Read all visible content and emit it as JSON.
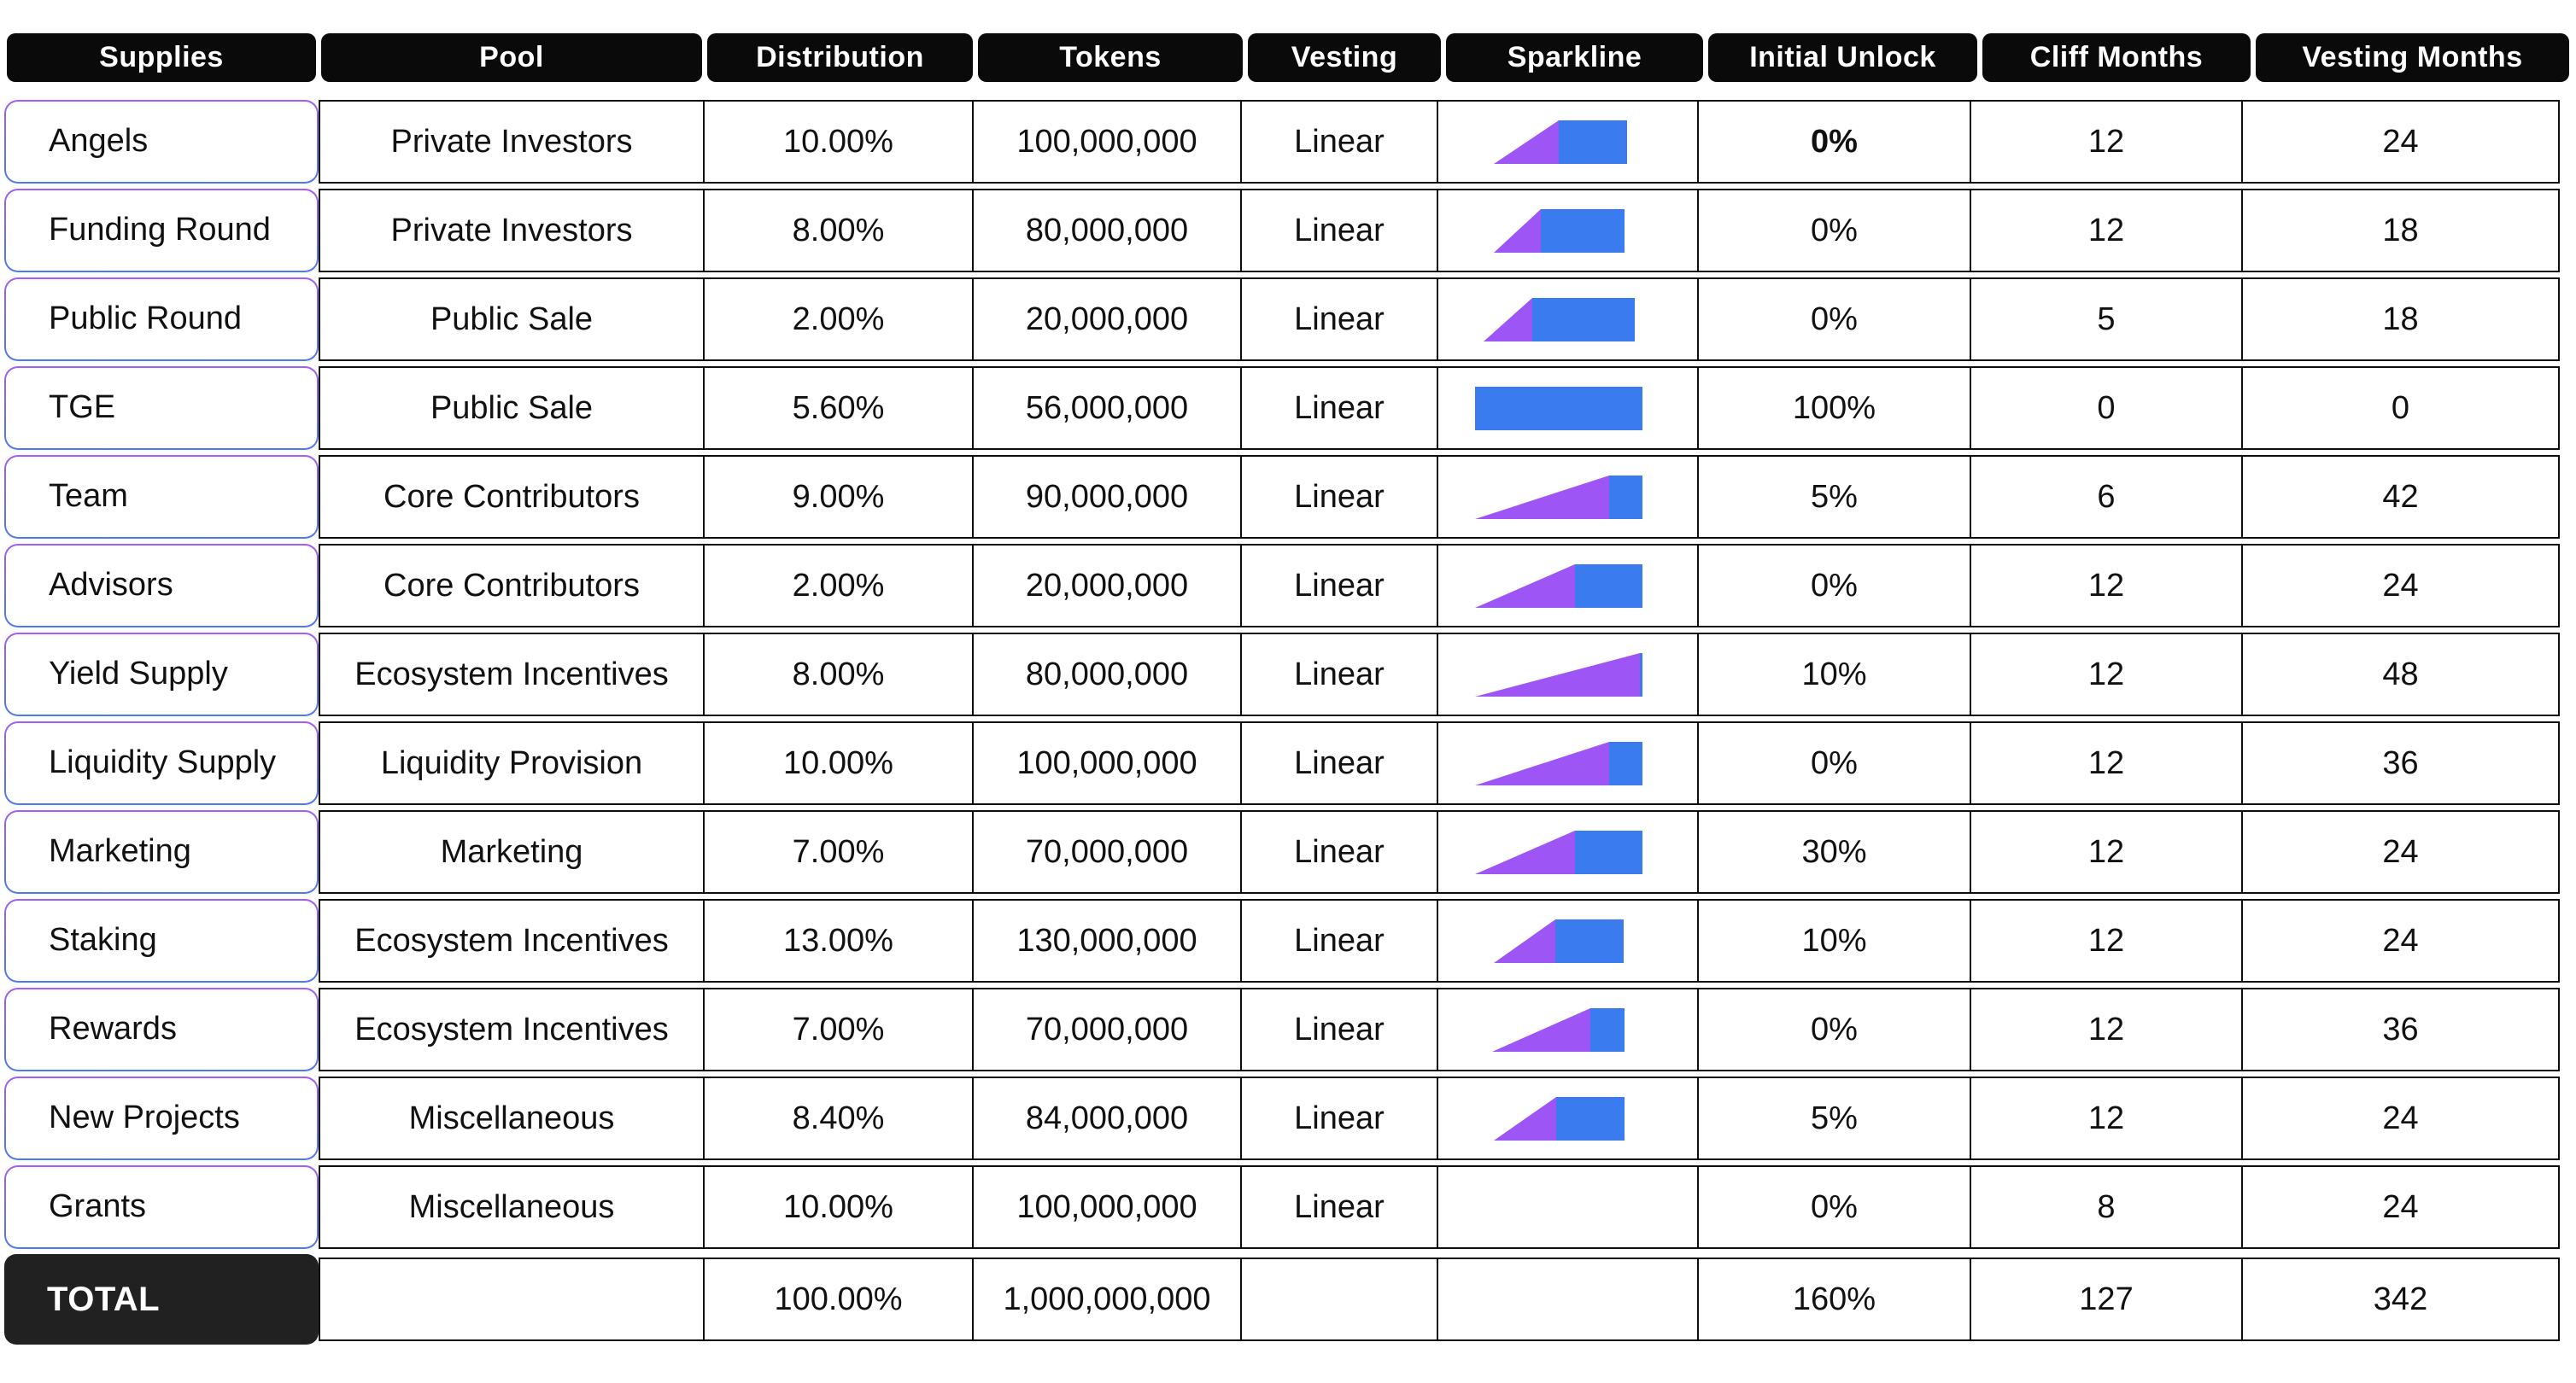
{
  "table": {
    "columns": [
      {
        "key": "supplies",
        "label": "Supplies"
      },
      {
        "key": "pool",
        "label": "Pool"
      },
      {
        "key": "distribution",
        "label": "Distribution"
      },
      {
        "key": "tokens",
        "label": "Tokens"
      },
      {
        "key": "vesting",
        "label": "Vesting"
      },
      {
        "key": "sparkline",
        "label": "Sparkline"
      },
      {
        "key": "initial_unlock",
        "label": "Initial Unlock"
      },
      {
        "key": "cliff_months",
        "label": "Cliff Months"
      },
      {
        "key": "vesting_months",
        "label": "Vesting Months"
      }
    ],
    "rows": [
      {
        "supplies": "Angels",
        "pool": "Private Investors",
        "distribution": "10.00%",
        "tokens": "100,000,000",
        "vesting": "Linear",
        "sparkline": {
          "offset": 22,
          "ramp": 76,
          "full": 80
        },
        "initial_unlock": "0%",
        "initial_unlock_bold": true,
        "cliff_months": "12",
        "vesting_months": "24"
      },
      {
        "supplies": "Funding Round",
        "pool": "Private Investors",
        "distribution": "8.00%",
        "tokens": "80,000,000",
        "vesting": "Linear",
        "sparkline": {
          "offset": 22,
          "ramp": 55,
          "full": 98
        },
        "initial_unlock": "0%",
        "cliff_months": "12",
        "vesting_months": "18"
      },
      {
        "supplies": "Public Round",
        "pool": "Public Sale",
        "distribution": "2.00%",
        "tokens": "20,000,000",
        "vesting": "Linear",
        "sparkline": {
          "offset": 10,
          "ramp": 57,
          "full": 120
        },
        "initial_unlock": "0%",
        "cliff_months": "5",
        "vesting_months": "18"
      },
      {
        "supplies": "TGE",
        "pool": "Public Sale",
        "distribution": "5.60%",
        "tokens": "56,000,000",
        "vesting": "Linear",
        "sparkline": {
          "offset": 0,
          "ramp": 0,
          "full": 196
        },
        "initial_unlock": "100%",
        "cliff_months": "0",
        "vesting_months": "0"
      },
      {
        "supplies": "Team",
        "pool": "Core Contributors",
        "distribution": "9.00%",
        "tokens": "90,000,000",
        "vesting": "Linear",
        "sparkline": {
          "offset": 0,
          "ramp": 157,
          "full": 40
        },
        "initial_unlock": "5%",
        "cliff_months": "6",
        "vesting_months": "42"
      },
      {
        "supplies": "Advisors",
        "pool": "Core Contributors",
        "distribution": "2.00%",
        "tokens": "20,000,000",
        "vesting": "Linear",
        "sparkline": {
          "offset": 0,
          "ramp": 117,
          "full": 80
        },
        "initial_unlock": "0%",
        "cliff_months": "12",
        "vesting_months": "24"
      },
      {
        "supplies": "Yield Supply",
        "pool": "Ecosystem Incentives",
        "distribution": "8.00%",
        "tokens": "80,000,000",
        "vesting": "Linear",
        "sparkline": {
          "offset": 0,
          "ramp": 193,
          "full": 4
        },
        "initial_unlock": "10%",
        "cliff_months": "12",
        "vesting_months": "48"
      },
      {
        "supplies": "Liquidity Supply",
        "pool": "Liquidity Provision",
        "distribution": "10.00%",
        "tokens": "100,000,000",
        "vesting": "Linear",
        "sparkline": {
          "offset": 0,
          "ramp": 157,
          "full": 40
        },
        "initial_unlock": "0%",
        "cliff_months": "12",
        "vesting_months": "36"
      },
      {
        "supplies": "Marketing",
        "pool": "Marketing",
        "distribution": "7.00%",
        "tokens": "70,000,000",
        "vesting": "Linear",
        "sparkline": {
          "offset": 0,
          "ramp": 117,
          "full": 80
        },
        "initial_unlock": "30%",
        "cliff_months": "12",
        "vesting_months": "24"
      },
      {
        "supplies": "Staking",
        "pool": "Ecosystem Incentives",
        "distribution": "13.00%",
        "tokens": "130,000,000",
        "vesting": "Linear",
        "sparkline": {
          "offset": 22,
          "ramp": 72,
          "full": 80
        },
        "initial_unlock": "10%",
        "cliff_months": "12",
        "vesting_months": "24"
      },
      {
        "supplies": "Rewards",
        "pool": "Ecosystem Incentives",
        "distribution": "7.00%",
        "tokens": "70,000,000",
        "vesting": "Linear",
        "sparkline": {
          "offset": 20,
          "ramp": 115,
          "full": 40
        },
        "initial_unlock": "0%",
        "cliff_months": "12",
        "vesting_months": "36"
      },
      {
        "supplies": "New Projects",
        "pool": "Miscellaneous",
        "distribution": "8.40%",
        "tokens": "84,000,000",
        "vesting": "Linear",
        "sparkline": {
          "offset": 22,
          "ramp": 73,
          "full": 80
        },
        "initial_unlock": "5%",
        "cliff_months": "12",
        "vesting_months": "24"
      },
      {
        "supplies": "Grants",
        "pool": "Miscellaneous",
        "distribution": "10.00%",
        "tokens": "100,000,000",
        "vesting": "Linear",
        "sparkline": null,
        "initial_unlock": "0%",
        "cliff_months": "8",
        "vesting_months": "24"
      }
    ],
    "total": {
      "label": "TOTAL",
      "pool": "",
      "distribution": "100.00%",
      "tokens": "1,000,000,000",
      "vesting": "",
      "initial_unlock": "160%",
      "cliff_months": "127",
      "vesting_months": "342"
    }
  },
  "colors": {
    "header_bg": "#0a0a0a",
    "header_text": "#ffffff",
    "cell_border": "#0d0d0d",
    "label_border_top": "#a45ef4",
    "label_border_bottom": "#4a7bf0",
    "spark_purple": "#9d55f5",
    "spark_blue": "#3b7bf0",
    "total_bg": "#212121",
    "total_text": "#ffffff"
  }
}
